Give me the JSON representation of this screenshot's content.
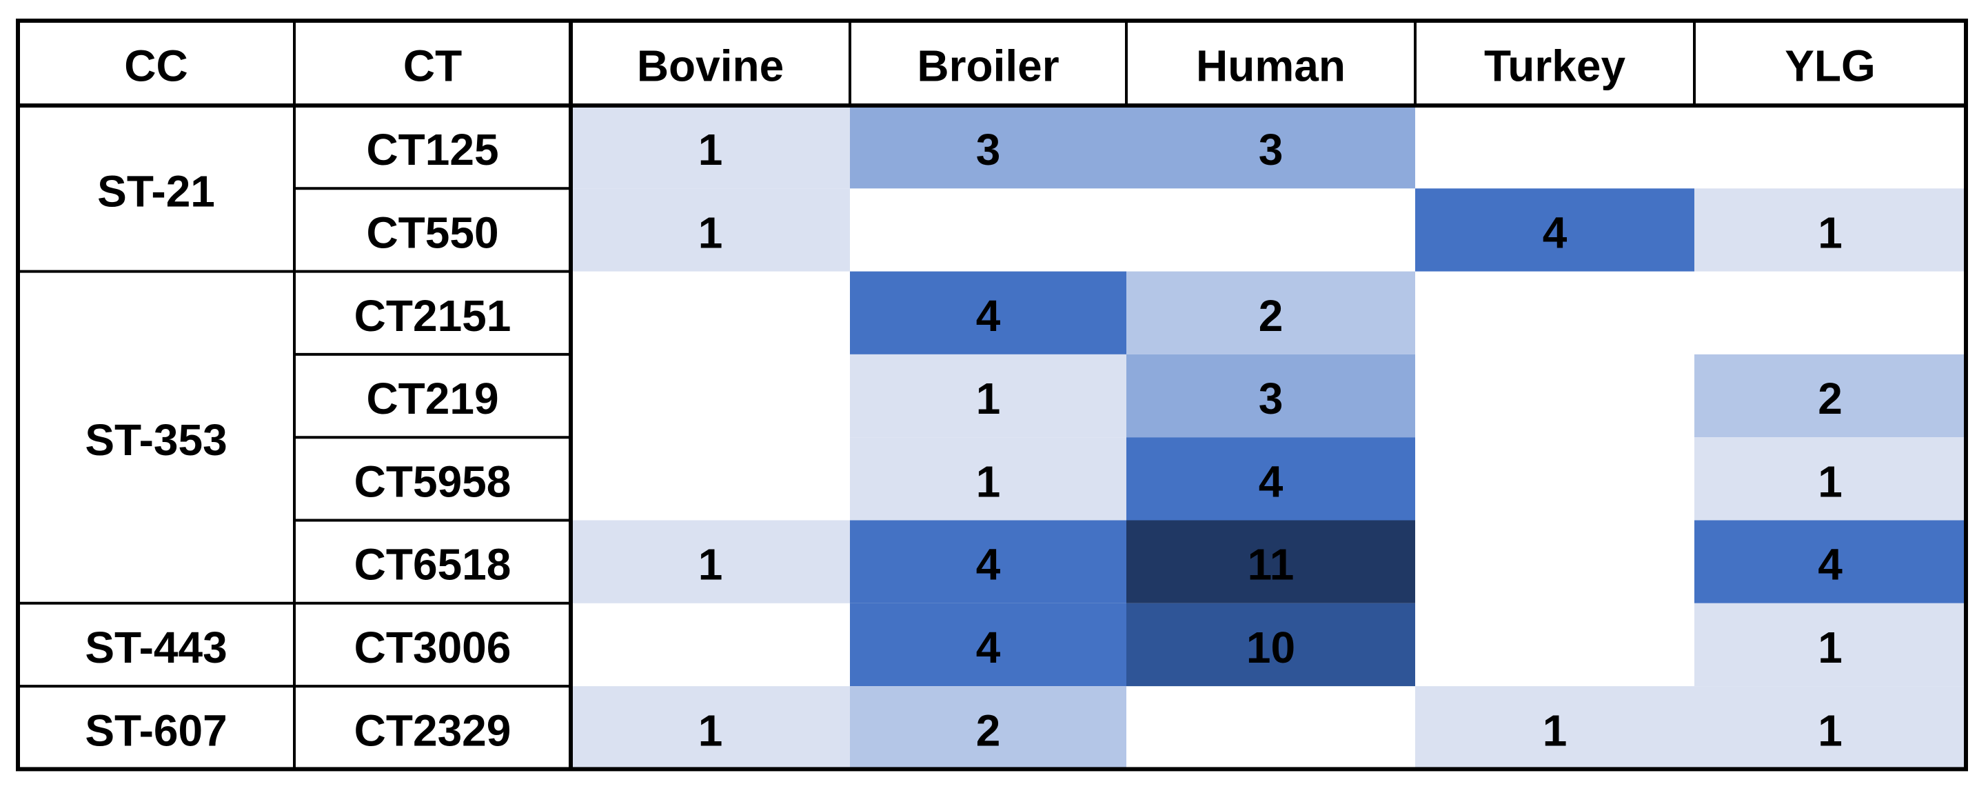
{
  "table": {
    "header": [
      "CC",
      "CT",
      "Bovine",
      "Broiler",
      "Human",
      "Turkey",
      "YLG"
    ],
    "groups": [
      {
        "cc": "ST-21",
        "rows": [
          {
            "ct": "CT125",
            "values": [
              1,
              3,
              3,
              null,
              null
            ],
            "colors": [
              "#dae1f1",
              "#8eaadb",
              "#8eaadb",
              null,
              null
            ]
          },
          {
            "ct": "CT550",
            "values": [
              1,
              null,
              null,
              4,
              1
            ],
            "colors": [
              "#dae1f1",
              null,
              null,
              "#4472c4",
              "#dae1f1"
            ]
          }
        ]
      },
      {
        "cc": "ST-353",
        "rows": [
          {
            "ct": "CT2151",
            "values": [
              null,
              4,
              2,
              null,
              null
            ],
            "colors": [
              null,
              "#4472c4",
              "#b4c6e7",
              null,
              null
            ]
          },
          {
            "ct": "CT219",
            "values": [
              null,
              1,
              3,
              null,
              2
            ],
            "colors": [
              null,
              "#dae1f1",
              "#8eaadb",
              null,
              "#b4c6e7"
            ]
          },
          {
            "ct": "CT5958",
            "values": [
              null,
              1,
              4,
              null,
              1
            ],
            "colors": [
              null,
              "#dae1f1",
              "#4472c4",
              null,
              "#dae1f1"
            ]
          },
          {
            "ct": "CT6518",
            "values": [
              1,
              4,
              11,
              null,
              4
            ],
            "colors": [
              "#dae1f1",
              "#4472c4",
              "#203864",
              null,
              "#4472c4"
            ]
          }
        ]
      },
      {
        "cc": "ST-443",
        "rows": [
          {
            "ct": "CT3006",
            "values": [
              null,
              4,
              10,
              null,
              1
            ],
            "colors": [
              null,
              "#4472c4",
              "#2f5597",
              null,
              "#dae1f1"
            ]
          }
        ]
      },
      {
        "cc": "ST-607",
        "rows": [
          {
            "ct": "CT2329",
            "values": [
              1,
              2,
              null,
              1,
              1
            ],
            "colors": [
              "#dae1f1",
              "#b4c6e7",
              null,
              "#dae1f1",
              "#dae1f1"
            ]
          }
        ]
      }
    ]
  }
}
